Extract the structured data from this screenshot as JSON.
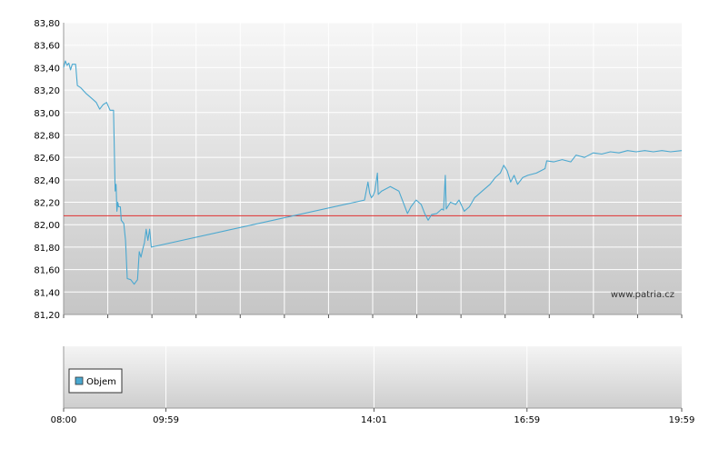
{
  "chart_data": [
    {
      "type": "line",
      "title": "",
      "xlabel": "",
      "ylabel": "",
      "xlim": [
        "08:00",
        "19:59"
      ],
      "ylim": [
        81.2,
        83.8
      ],
      "y_ticks": [
        "81,20",
        "81,40",
        "81,60",
        "81,80",
        "82,00",
        "82,20",
        "82,40",
        "82,60",
        "82,80",
        "83,00",
        "83,20",
        "83,40",
        "83,60",
        "83,80"
      ],
      "grid": true,
      "reference_line": {
        "value": 82.08,
        "color": "#e03030"
      },
      "watermark": "www.patria.cz",
      "series": [
        {
          "color": "#4aa8d0",
          "points": [
            [
              "08:00",
              83.4
            ],
            [
              "08:02",
              83.46
            ],
            [
              "08:04",
              83.42
            ],
            [
              "08:06",
              83.44
            ],
            [
              "08:08",
              83.38
            ],
            [
              "08:10",
              83.43
            ],
            [
              "08:14",
              83.43
            ],
            [
              "08:16",
              83.24
            ],
            [
              "08:20",
              83.22
            ],
            [
              "08:26",
              83.17
            ],
            [
              "08:32",
              83.13
            ],
            [
              "08:38",
              83.09
            ],
            [
              "08:42",
              83.03
            ],
            [
              "08:46",
              83.07
            ],
            [
              "08:50",
              83.09
            ],
            [
              "08:54",
              83.02
            ],
            [
              "08:58",
              83.02
            ],
            [
              "09:00",
              82.3
            ],
            [
              "09:01",
              82.36
            ],
            [
              "09:02",
              82.12
            ],
            [
              "09:03",
              82.2
            ],
            [
              "09:04",
              82.16
            ],
            [
              "09:06",
              82.16
            ],
            [
              "09:07",
              82.04
            ],
            [
              "09:08",
              82.03
            ],
            [
              "09:10",
              82.01
            ],
            [
              "09:12",
              81.86
            ],
            [
              "09:14",
              81.52
            ],
            [
              "09:18",
              81.51
            ],
            [
              "09:22",
              81.47
            ],
            [
              "09:26",
              81.51
            ],
            [
              "09:28",
              81.76
            ],
            [
              "09:30",
              81.71
            ],
            [
              "09:32",
              81.78
            ],
            [
              "09:34",
              81.84
            ],
            [
              "09:36",
              81.96
            ],
            [
              "09:38",
              81.86
            ],
            [
              "09:40",
              81.96
            ],
            [
              "09:42",
              81.8
            ],
            [
              "13:50",
              82.22
            ],
            [
              "13:54",
              82.38
            ],
            [
              "13:56",
              82.28
            ],
            [
              "13:58",
              82.24
            ],
            [
              "14:00",
              82.26
            ],
            [
              "14:02",
              82.3
            ],
            [
              "14:05",
              82.46
            ],
            [
              "14:06",
              82.27
            ],
            [
              "14:10",
              82.3
            ],
            [
              "14:20",
              82.34
            ],
            [
              "14:30",
              82.3
            ],
            [
              "14:40",
              82.1
            ],
            [
              "14:44",
              82.16
            ],
            [
              "14:50",
              82.22
            ],
            [
              "14:56",
              82.18
            ],
            [
              "15:00",
              82.1
            ],
            [
              "15:04",
              82.04
            ],
            [
              "15:08",
              82.09
            ],
            [
              "15:14",
              82.1
            ],
            [
              "15:20",
              82.14
            ],
            [
              "15:22",
              82.13
            ],
            [
              "15:24",
              82.44
            ],
            [
              "15:25",
              82.14
            ],
            [
              "15:30",
              82.2
            ],
            [
              "15:36",
              82.18
            ],
            [
              "15:40",
              82.22
            ],
            [
              "15:46",
              82.12
            ],
            [
              "15:52",
              82.16
            ],
            [
              "15:58",
              82.24
            ],
            [
              "16:04",
              82.28
            ],
            [
              "16:10",
              82.32
            ],
            [
              "16:16",
              82.36
            ],
            [
              "16:22",
              82.42
            ],
            [
              "16:28",
              82.46
            ],
            [
              "16:32",
              82.53
            ],
            [
              "16:36",
              82.48
            ],
            [
              "16:40",
              82.38
            ],
            [
              "16:44",
              82.44
            ],
            [
              "16:48",
              82.36
            ],
            [
              "16:54",
              82.42
            ],
            [
              "17:00",
              82.44
            ],
            [
              "17:10",
              82.46
            ],
            [
              "17:20",
              82.5
            ],
            [
              "17:22",
              82.57
            ],
            [
              "17:30",
              82.56
            ],
            [
              "17:40",
              82.58
            ],
            [
              "17:50",
              82.56
            ],
            [
              "17:56",
              82.62
            ],
            [
              "18:06",
              82.6
            ],
            [
              "18:16",
              82.64
            ],
            [
              "18:26",
              82.63
            ],
            [
              "18:36",
              82.65
            ],
            [
              "18:46",
              82.64
            ],
            [
              "18:56",
              82.66
            ],
            [
              "19:06",
              82.65
            ],
            [
              "19:16",
              82.66
            ],
            [
              "19:26",
              82.65
            ],
            [
              "19:36",
              82.66
            ],
            [
              "19:46",
              82.65
            ],
            [
              "19:59",
              82.66
            ]
          ]
        }
      ]
    },
    {
      "type": "bar",
      "title": "",
      "xlabel": "",
      "ylabel": "",
      "x_ticks": [
        "08:00",
        "09:59",
        "14:01",
        "16:59",
        "19:59"
      ],
      "legend": {
        "label": "Objem",
        "placement": "bottom-left",
        "color": "#4aa8d0"
      },
      "series": [
        {
          "name": "Objem",
          "color": "#4aa8d0",
          "values": []
        }
      ]
    }
  ]
}
